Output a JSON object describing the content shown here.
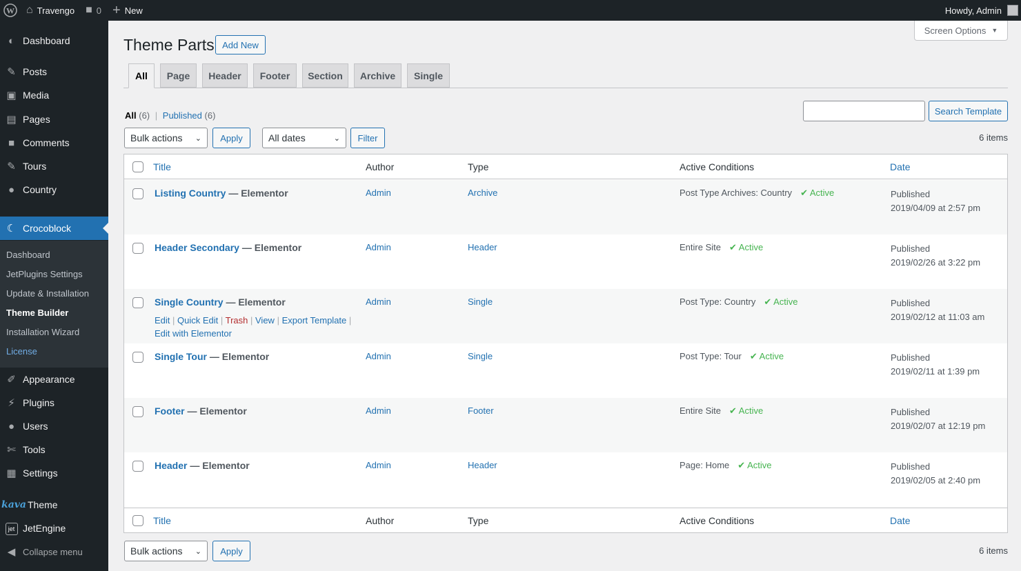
{
  "adminbar": {
    "site_name": "Travengo",
    "comments_count": "0",
    "new_label": "New",
    "greeting": "Howdy, Admin"
  },
  "sidebar": {
    "items": [
      {
        "label": "Dashboard",
        "icon": "dashboard-icon"
      },
      {
        "label": "Posts",
        "icon": "pin-icon"
      },
      {
        "label": "Media",
        "icon": "media-icon"
      },
      {
        "label": "Pages",
        "icon": "pages-icon"
      },
      {
        "label": "Comments",
        "icon": "comment-icon"
      },
      {
        "label": "Tours",
        "icon": "pin-icon"
      },
      {
        "label": "Country",
        "icon": "globe-icon"
      },
      {
        "label": "Crocoblock",
        "icon": "crocoblock-icon"
      },
      {
        "label": "Appearance",
        "icon": "brush-icon"
      },
      {
        "label": "Plugins",
        "icon": "plugin-icon"
      },
      {
        "label": "Users",
        "icon": "user-icon"
      },
      {
        "label": "Tools",
        "icon": "wrench-icon"
      },
      {
        "label": "Settings",
        "icon": "settings-icon"
      },
      {
        "label": "Theme",
        "icon": "kava-logo",
        "logo_text": "kava"
      },
      {
        "label": "JetEngine",
        "icon": "jetengine-icon"
      },
      {
        "label": "Collapse menu",
        "icon": "collapse-icon"
      }
    ],
    "submenu": [
      "Dashboard",
      "JetPlugins Settings",
      "Update & Installation",
      "Theme Builder",
      "Installation Wizard",
      "License"
    ]
  },
  "screen_options": "Screen Options",
  "page": {
    "title": "Theme Parts",
    "add_new": "Add New"
  },
  "tabs": [
    "All",
    "Page",
    "Header",
    "Footer",
    "Section",
    "Archive",
    "Single"
  ],
  "views": {
    "all_label": "All",
    "all_count": "(6)",
    "published_label": "Published",
    "published_count": "(6)"
  },
  "search": {
    "value": "",
    "button": "Search Template"
  },
  "filters": {
    "bulk_actions": "Bulk actions",
    "apply": "Apply",
    "dates": "All dates",
    "filter": "Filter",
    "items_count": "6 items"
  },
  "table": {
    "columns": [
      "Title",
      "Author",
      "Type",
      "Active Conditions",
      "Date"
    ],
    "rows": [
      {
        "title": "Listing Country",
        "state": "— Elementor",
        "author": "Admin",
        "type": "Archive",
        "condition": "Post Type Archives: Country",
        "active": "Active",
        "status": "Published",
        "date": "2019/04/09 at 2:57 pm"
      },
      {
        "title": "Header Secondary",
        "state": "— Elementor",
        "author": "Admin",
        "type": "Header",
        "condition": "Entire Site",
        "active": "Active",
        "status": "Published",
        "date": "2019/02/26 at 3:22 pm"
      },
      {
        "title": "Single Country",
        "state": "— Elementor",
        "author": "Admin",
        "type": "Single",
        "condition": "Post Type: Country",
        "active": "Active",
        "status": "Published",
        "date": "2019/02/12 at 11:03 am"
      },
      {
        "title": "Single Tour",
        "state": "— Elementor",
        "author": "Admin",
        "type": "Single",
        "condition": "Post Type: Tour",
        "active": "Active",
        "status": "Published",
        "date": "2019/02/11 at 1:39 pm"
      },
      {
        "title": "Footer",
        "state": "— Elementor",
        "author": "Admin",
        "type": "Footer",
        "condition": "Entire Site",
        "active": "Active",
        "status": "Published",
        "date": "2019/02/07 at 12:19 pm"
      },
      {
        "title": "Header",
        "state": "— Elementor",
        "author": "Admin",
        "type": "Header",
        "condition": "Page: Home",
        "active": "Active",
        "status": "Published",
        "date": "2019/02/05 at 2:40 pm"
      }
    ],
    "row_actions": [
      "Edit",
      "Quick Edit",
      "Trash",
      "View",
      "Export Template",
      "Edit with Elementor"
    ]
  },
  "colors": {
    "accent": "#2271b1",
    "sidebar_bg": "#1d2327",
    "active_green": "#46b450",
    "trash_red": "#b32d2e"
  }
}
